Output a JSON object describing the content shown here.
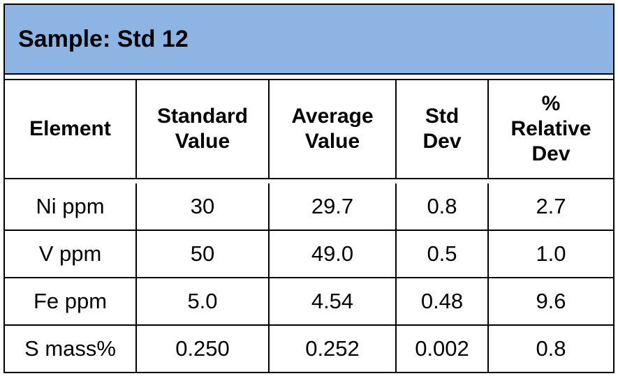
{
  "colors": {
    "header_background": "#8eb4e3",
    "border": "#000000",
    "background": "#ffffff"
  },
  "title": "Sample: Std 12",
  "columns": [
    [
      "Element"
    ],
    [
      "Standard",
      "Value"
    ],
    [
      "Average",
      "Value"
    ],
    [
      "Std",
      "Dev"
    ],
    [
      "%",
      "Relative",
      "Dev"
    ]
  ],
  "rows": [
    [
      "Ni ppm",
      "30",
      "29.7",
      "0.8",
      "2.7"
    ],
    [
      "V ppm",
      "50",
      "49.0",
      "0.5",
      "1.0"
    ],
    [
      "Fe ppm",
      "5.0",
      "4.54",
      "0.48",
      "9.6"
    ],
    [
      "S mass%",
      "0.250",
      "0.252",
      "0.002",
      "0.8"
    ]
  ]
}
